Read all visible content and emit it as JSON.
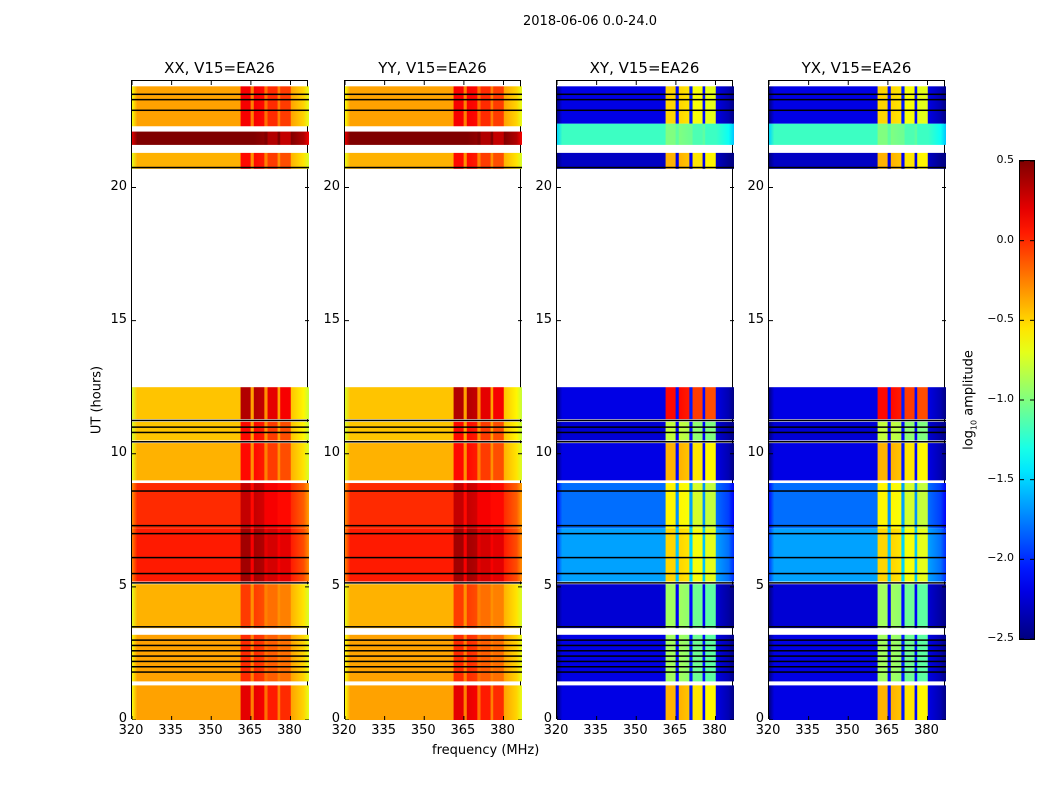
{
  "chart_data": {
    "type": "heatmap",
    "title": "2018-06-06 0.0-24.0",
    "xlabel": "frequency (MHz)",
    "ylabel": "UT (hours)",
    "xlim": [
      320,
      387
    ],
    "ylim": [
      0,
      24
    ],
    "xticks": [
      320,
      335,
      350,
      365,
      380
    ],
    "yticks": [
      0,
      5,
      10,
      15,
      20
    ],
    "panels": [
      {
        "title": "XX, V15=EA26",
        "kind": "parallel"
      },
      {
        "title": "YY, V15=EA26",
        "kind": "parallel"
      },
      {
        "title": "XY, V15=EA26",
        "kind": "cross"
      },
      {
        "title": "YX, V15=EA26",
        "kind": "cross"
      }
    ],
    "bands": {
      "parallel": [
        {
          "from": 0.0,
          "to": 1.3,
          "base": -0.35,
          "rfi": 0.2
        },
        {
          "from": 1.45,
          "to": 3.2,
          "base": -0.35,
          "rfi": 0.0
        },
        {
          "from": 3.45,
          "to": 5.1,
          "base": -0.4,
          "rfi": -0.05
        },
        {
          "from": 5.2,
          "to": 7.2,
          "base": 0.05,
          "rfi": 0.4
        },
        {
          "from": 7.2,
          "to": 8.9,
          "base": 0.0,
          "rfi": 0.3
        },
        {
          "from": 9.0,
          "to": 10.4,
          "base": -0.4,
          "rfi": 0.1
        },
        {
          "from": 10.5,
          "to": 11.2,
          "base": -0.45,
          "rfi": 0.1
        },
        {
          "from": 11.3,
          "to": 12.5,
          "base": -0.45,
          "rfi": 0.35
        },
        {
          "from": 20.7,
          "to": 21.3,
          "base": -0.4,
          "rfi": 0.1
        },
        {
          "from": 21.6,
          "to": 22.1,
          "base": 0.5,
          "rfi": 0.5
        },
        {
          "from": 22.3,
          "to": 23.8,
          "base": -0.35,
          "rfi": 0.15
        }
      ],
      "cross": [
        {
          "from": 0.0,
          "to": 1.3,
          "base": -2.2,
          "rfi": -0.4
        },
        {
          "from": 1.45,
          "to": 3.2,
          "base": -2.2,
          "rfi": -0.9
        },
        {
          "from": 3.45,
          "to": 5.1,
          "base": -2.25,
          "rfi": -0.9
        },
        {
          "from": 5.2,
          "to": 7.2,
          "base": -1.65,
          "rfi": -0.5
        },
        {
          "from": 7.2,
          "to": 8.9,
          "base": -1.8,
          "rfi": -0.6
        },
        {
          "from": 9.0,
          "to": 10.4,
          "base": -2.2,
          "rfi": -0.4
        },
        {
          "from": 10.5,
          "to": 11.2,
          "base": -2.25,
          "rfi": -0.8
        },
        {
          "from": 11.3,
          "to": 12.5,
          "base": -2.2,
          "rfi": 0.1
        },
        {
          "from": 20.7,
          "to": 21.3,
          "base": -2.3,
          "rfi": -0.4
        },
        {
          "from": 21.6,
          "to": 22.4,
          "base": -1.2,
          "rfi": -1.0
        },
        {
          "from": 22.4,
          "to": 23.8,
          "base": -2.2,
          "rfi": -0.5
        }
      ]
    },
    "flagged_lines": [
      1.8,
      2.0,
      2.2,
      2.4,
      2.6,
      2.8,
      3.0,
      3.5,
      5.15,
      5.5,
      6.1,
      7.0,
      7.3,
      8.6,
      10.45,
      10.8,
      11.0,
      11.25,
      20.75,
      22.9,
      23.3,
      23.5
    ],
    "colorbar": {
      "label": "log10 amplitude",
      "label_main": "log",
      "label_sub": "10",
      "label_rest": " amplitude",
      "range": [
        -2.5,
        0.5
      ],
      "ticks": [
        "0.5",
        "0.0",
        "−0.5",
        "−1.0",
        "−1.5",
        "−2.0",
        "−2.5"
      ],
      "tick_values": [
        0.5,
        0,
        -0.5,
        -1,
        -1.5,
        -2,
        -2.5
      ],
      "colormap": "jet"
    }
  }
}
